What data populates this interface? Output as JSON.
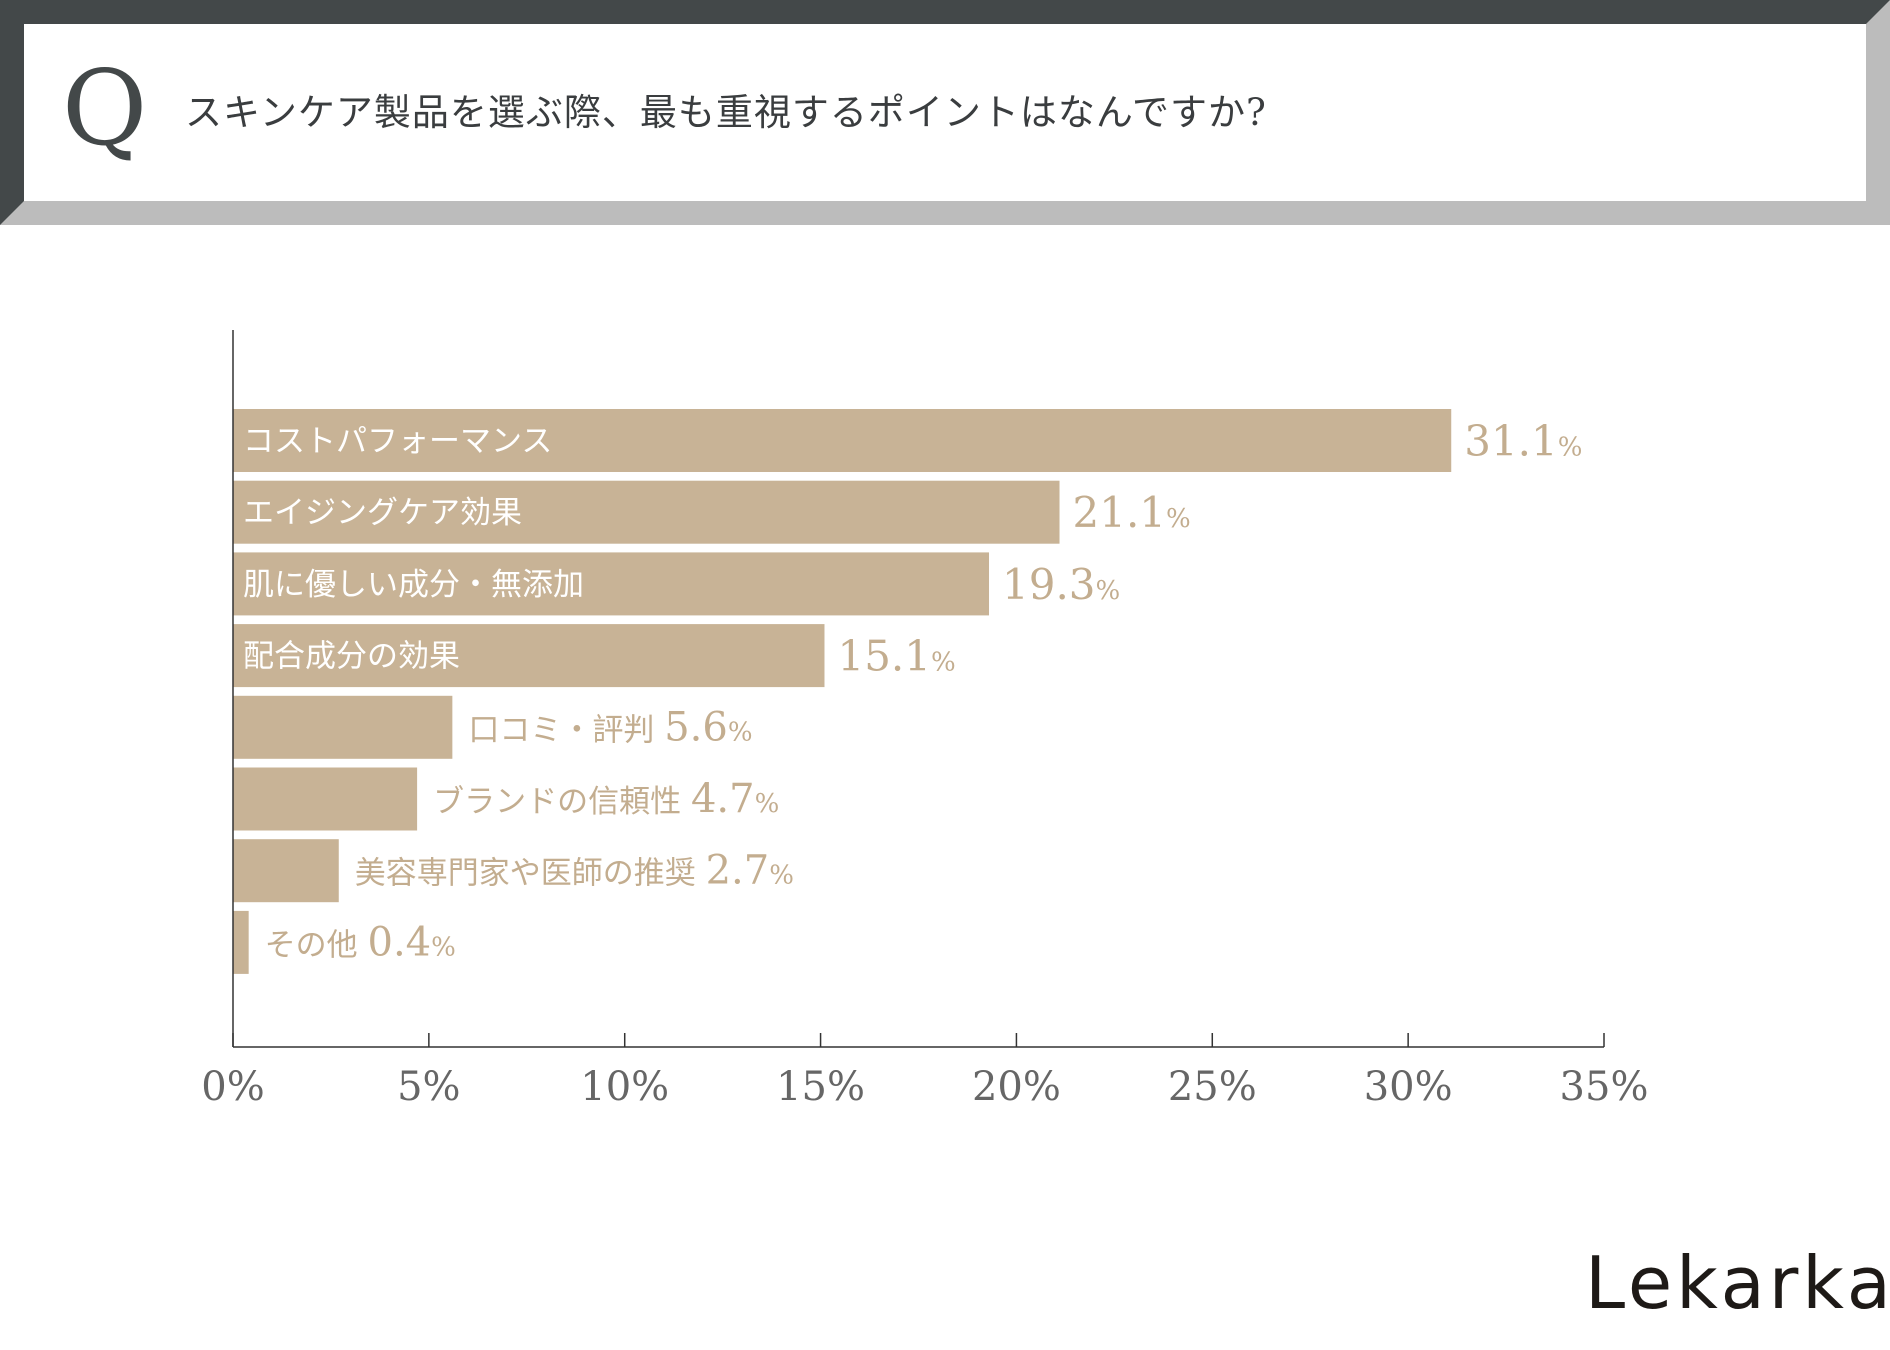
{
  "question": {
    "letter": "Q",
    "text": "スキンケア製品を選ぶ際、最も重視するポイントはなんですか?"
  },
  "brand": {
    "logo_text": "Lekarka"
  },
  "colors": {
    "bar": "#c8b396",
    "label_inside": "#ffffff",
    "label_outside": "#c3ad8f",
    "axis": "#333333",
    "tick_label": "#666666"
  },
  "chart_data": {
    "type": "bar",
    "orientation": "horizontal",
    "title": "スキンケア製品を選ぶ際、最も重視するポイントはなんですか?",
    "categories": [
      "コストパフォーマンス",
      "エイジングケア効果",
      "肌に優しい成分・無添加",
      "配合成分の効果",
      "口コミ・評判",
      "ブランドの信頼性",
      "美容専門家や医師の推奨",
      "その他"
    ],
    "values": [
      31.1,
      21.1,
      19.3,
      15.1,
      5.6,
      4.7,
      2.7,
      0.4
    ],
    "value_labels": [
      "31.1",
      "21.1",
      "19.3",
      "15.1",
      "5.6",
      "4.7",
      "2.7",
      "0.4"
    ],
    "value_suffix": "%",
    "label_position": [
      "inside",
      "inside",
      "inside",
      "inside",
      "outside",
      "outside",
      "outside",
      "outside"
    ],
    "xlim": [
      0,
      35
    ],
    "xticks": [
      0,
      5,
      10,
      15,
      20,
      25,
      30,
      35
    ],
    "xtick_labels": [
      "0%",
      "5%",
      "10%",
      "15%",
      "20%",
      "25%",
      "30%",
      "35%"
    ],
    "xlabel": "",
    "ylabel": "",
    "grid": false,
    "legend": "none"
  }
}
